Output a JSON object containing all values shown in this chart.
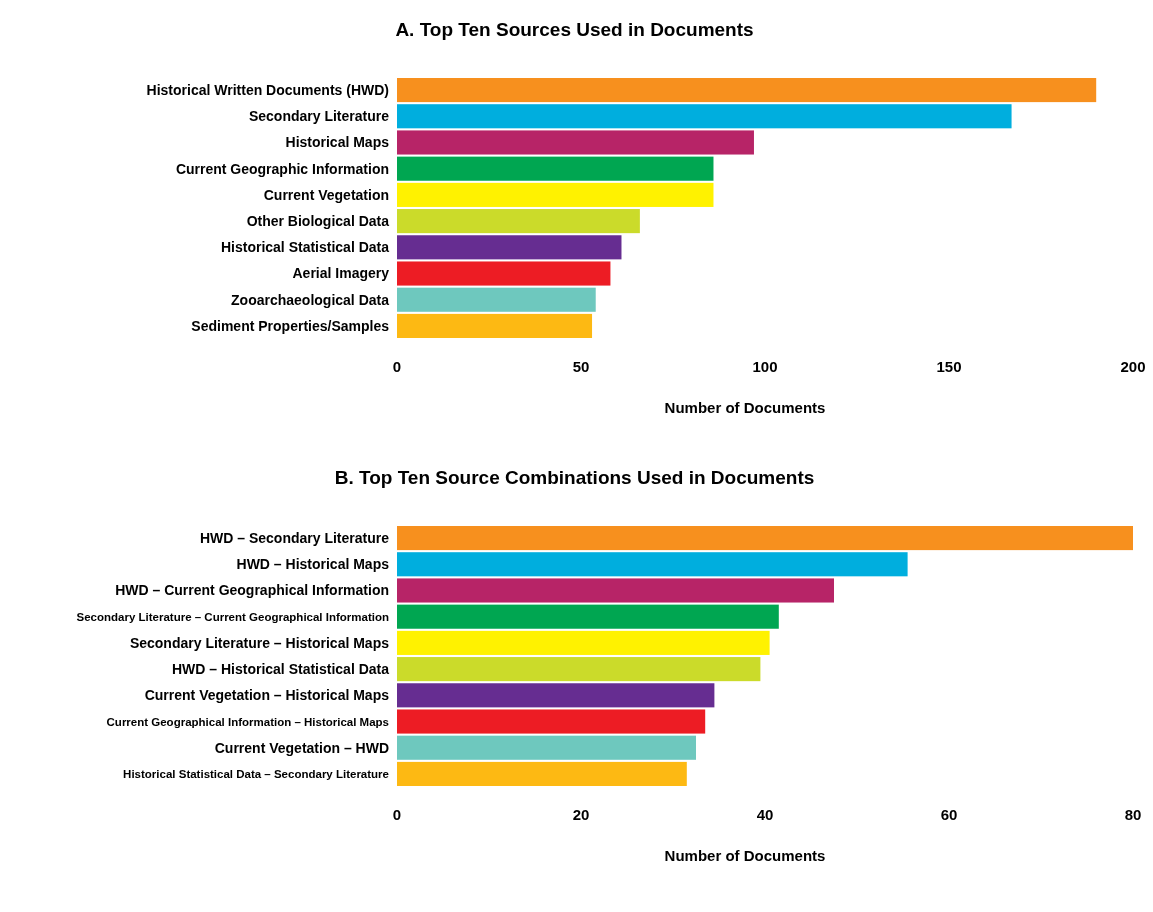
{
  "chart_data": [
    {
      "type": "bar",
      "orientation": "horizontal",
      "title": "A.   Top Ten Sources Used in Documents",
      "xlabel": "Number of Documents",
      "categories": [
        "Historical Written Documents (HWD)",
        "Secondary Literature",
        "Historical Maps",
        "Current Geographic Information",
        "Current Vegetation",
        "Other Biological Data",
        "Historical Statistical Data",
        "Aerial Imagery",
        "Zooarchaeological Data",
        "Sediment Properties/Samples"
      ],
      "values": [
        190,
        167,
        97,
        86,
        86,
        66,
        61,
        58,
        54,
        53
      ],
      "colors": [
        "#f7901e",
        "#00aede",
        "#b72467",
        "#00a651",
        "#fff200",
        "#cbdb2a",
        "#662d91",
        "#ed1c24",
        "#6ec8be",
        "#fdb913"
      ],
      "xlim": [
        0,
        200
      ],
      "xticks": [
        0,
        50,
        100,
        150,
        200
      ]
    },
    {
      "type": "bar",
      "orientation": "horizontal",
      "title": "B.   Top Ten Source Combinations Used in Documents",
      "xlabel": "Number of Documents",
      "categories": [
        "HWD – Secondary Literature",
        "HWD – Historical Maps",
        "HWD – Current Geographical Information",
        "Secondary Literature – Current Geographical Information",
        "Secondary Literature – Historical Maps",
        "HWD – Historical Statistical Data",
        "Current Vegetation – Historical Maps",
        "Current Geographical Information –  Historical Maps",
        "Current Vegetation – HWD",
        "Historical Statistical Data – Secondary Literature"
      ],
      "values": [
        80,
        55.5,
        47.5,
        41.5,
        40.5,
        39.5,
        34.5,
        33.5,
        32.5,
        31.5
      ],
      "colors": [
        "#f7901e",
        "#00aede",
        "#b72467",
        "#00a651",
        "#fff200",
        "#cbdb2a",
        "#662d91",
        "#ed1c24",
        "#6ec8be",
        "#fdb913"
      ],
      "xlim": [
        0,
        80
      ],
      "xticks": [
        0,
        20,
        40,
        60,
        80
      ]
    }
  ]
}
